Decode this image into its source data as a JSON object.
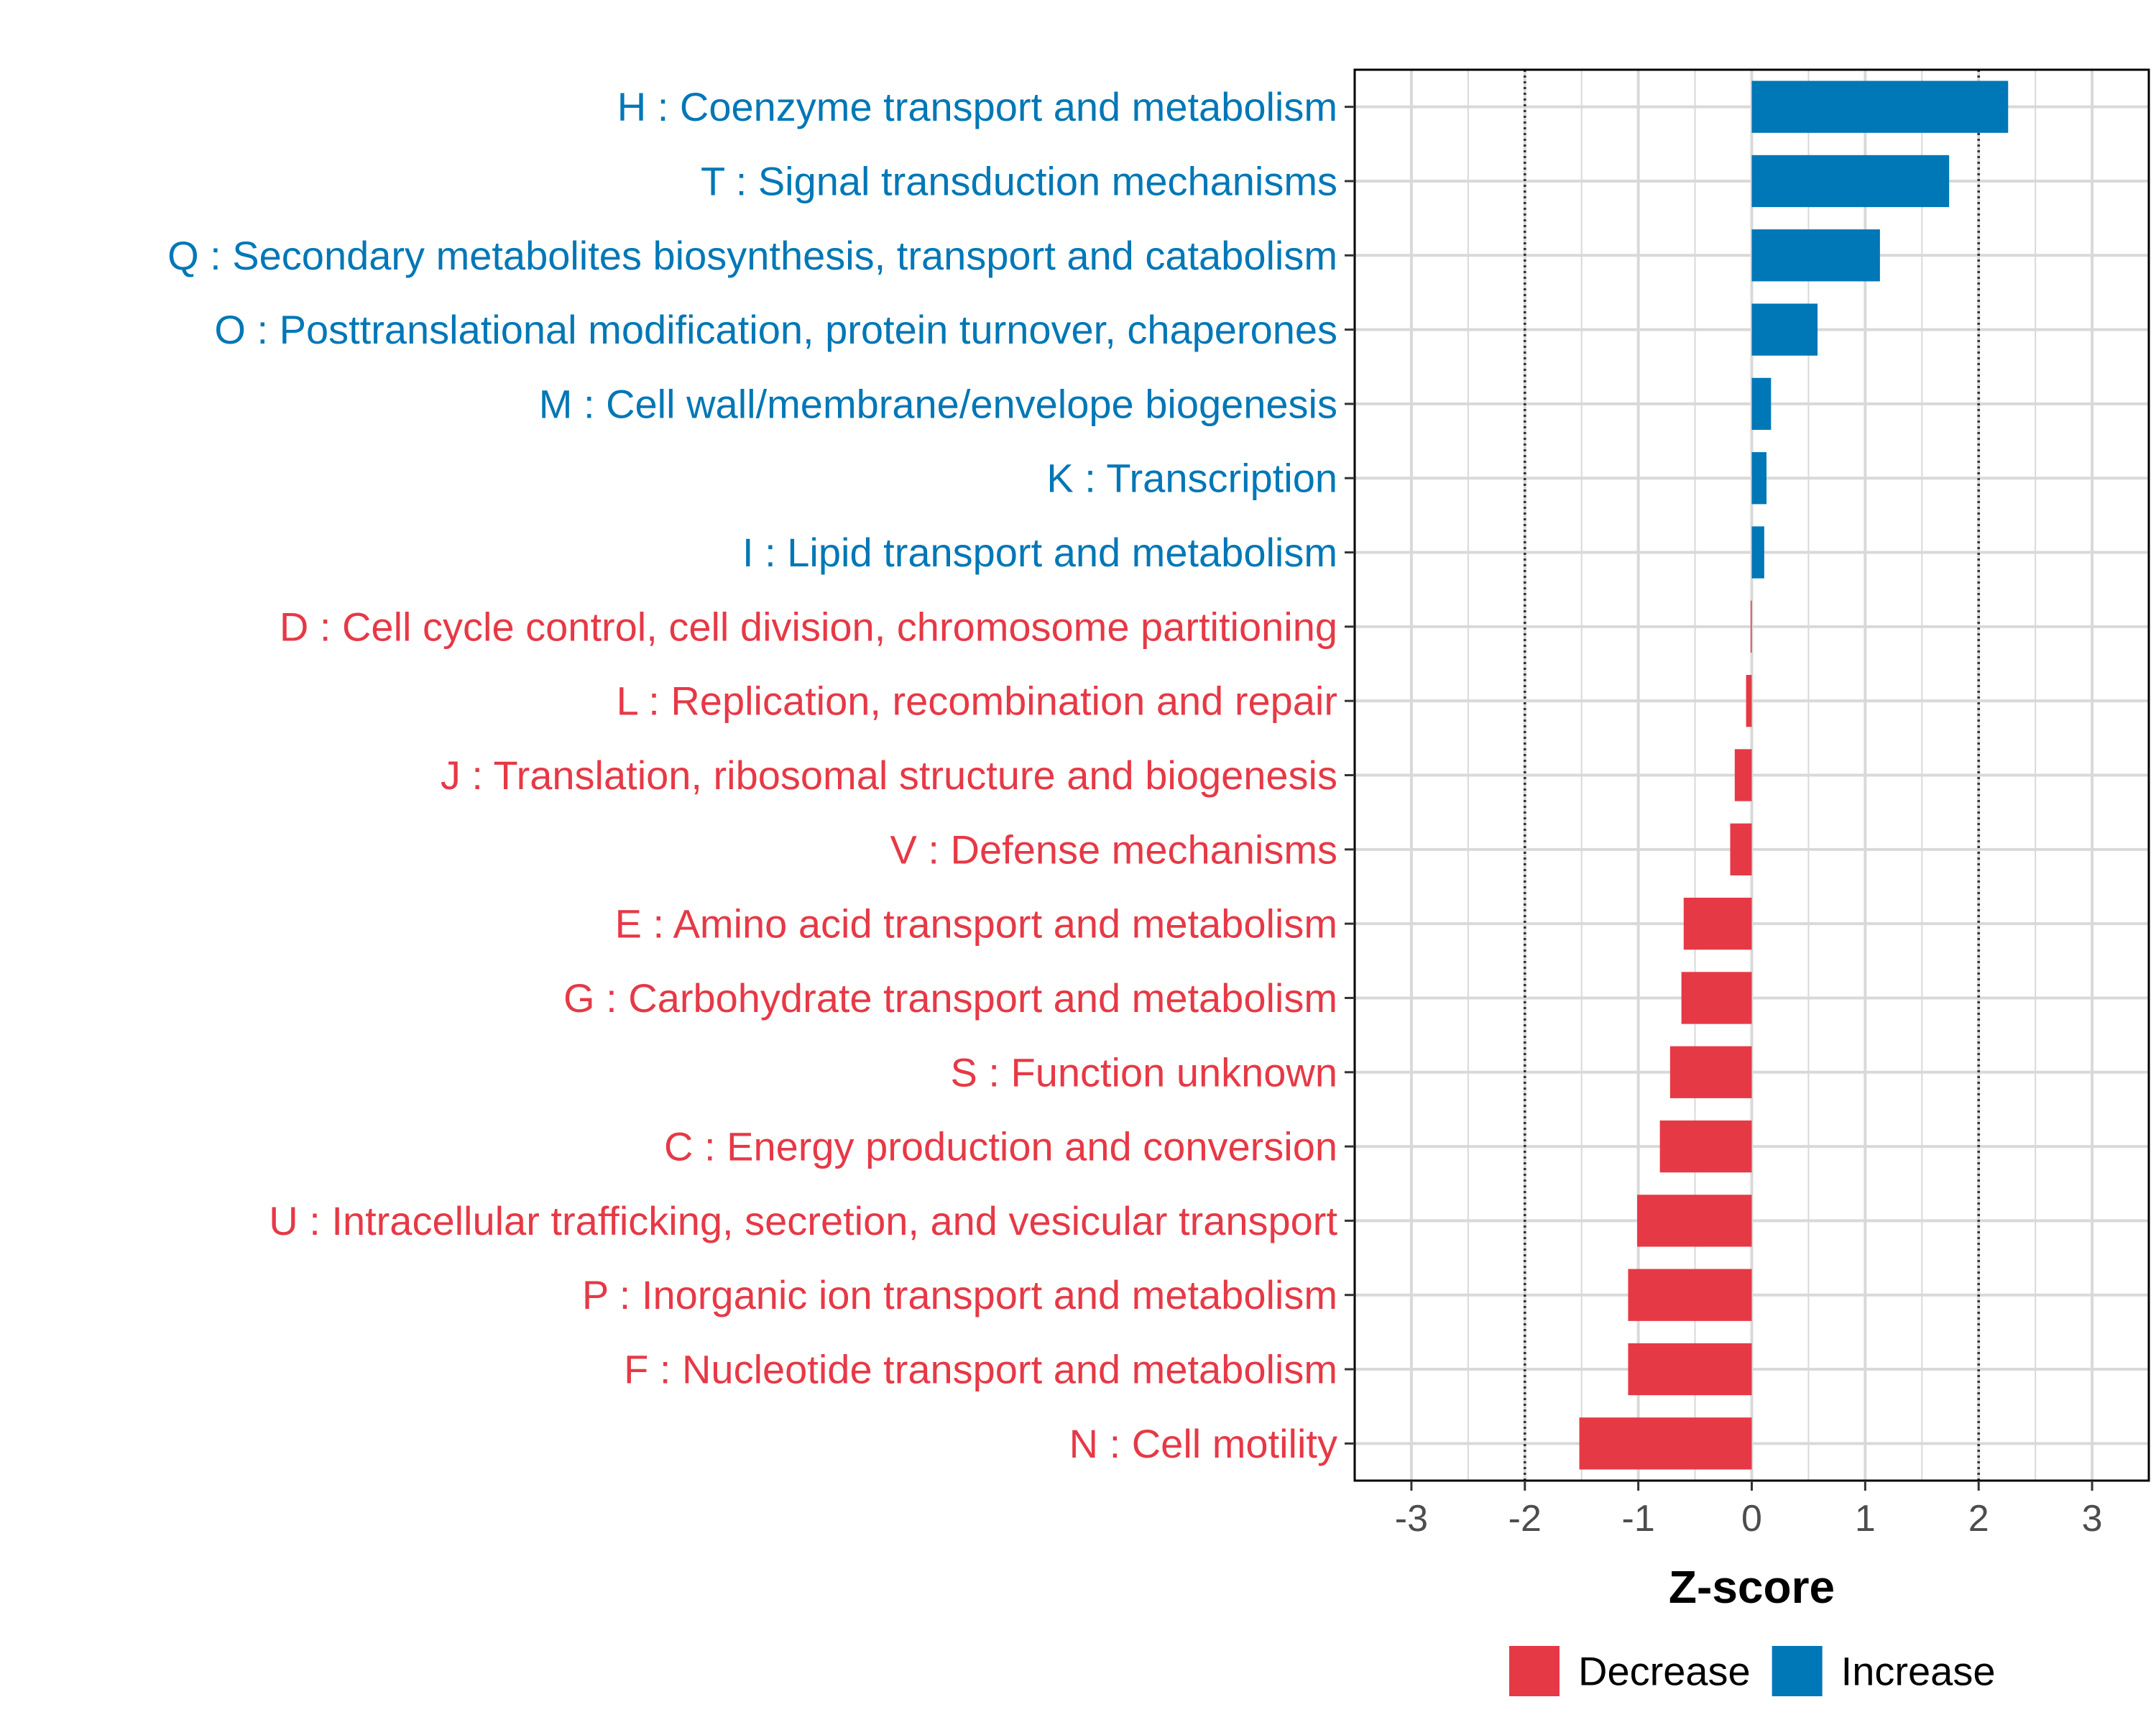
{
  "chart_data": {
    "type": "bar",
    "orientation": "horizontal",
    "title": "",
    "xlabel": "Z-score",
    "ylabel": "",
    "xlim": [
      -3.5,
      3.5
    ],
    "xticks": [
      -3,
      -2,
      -1,
      0,
      1,
      2,
      3
    ],
    "xtick_labels": [
      "-3",
      "-2",
      "-1",
      "0",
      "1",
      "2",
      "3"
    ],
    "reference_lines": [
      -2,
      2
    ],
    "grid": true,
    "categories": [
      "H : Coenzyme transport and metabolism",
      "T : Signal transduction mechanisms",
      "Q : Secondary metabolites biosynthesis, transport and catabolism",
      "O : Posttranslational modification, protein turnover, chaperones",
      "M : Cell wall/membrane/envelope biogenesis",
      "K : Transcription",
      "I : Lipid transport and metabolism",
      "D : Cell cycle control, cell division, chromosome partitioning",
      "L : Replication, recombination and repair",
      "J : Translation, ribosomal structure and biogenesis",
      "V : Defense mechanisms",
      "E : Amino acid transport and metabolism",
      "G : Carbohydrate transport and metabolism",
      "S : Function unknown",
      "C : Energy production and conversion",
      "U : Intracellular trafficking, secretion, and vesicular transport",
      "P : Inorganic ion transport and metabolism",
      "F : Nucleotide transport and metabolism",
      "N : Cell motility"
    ],
    "values": [
      2.26,
      1.74,
      1.13,
      0.58,
      0.17,
      0.13,
      0.11,
      -0.01,
      -0.05,
      -0.15,
      -0.19,
      -0.6,
      -0.62,
      -0.72,
      -0.81,
      -1.01,
      -1.09,
      -1.09,
      -1.52
    ],
    "groups": [
      "Increase",
      "Increase",
      "Increase",
      "Increase",
      "Increase",
      "Increase",
      "Increase",
      "Decrease",
      "Decrease",
      "Decrease",
      "Decrease",
      "Decrease",
      "Decrease",
      "Decrease",
      "Decrease",
      "Decrease",
      "Decrease",
      "Decrease",
      "Decrease"
    ],
    "legend": [
      {
        "name": "Decrease",
        "color": "#e63946"
      },
      {
        "name": "Increase",
        "color": "#0077b6"
      }
    ],
    "legend_position": "bottom"
  },
  "colors": {
    "decrease": "#e63946",
    "increase": "#0077b6",
    "grid": "#d9d9d9",
    "reference_line": "#333333",
    "axis": "#000000"
  }
}
